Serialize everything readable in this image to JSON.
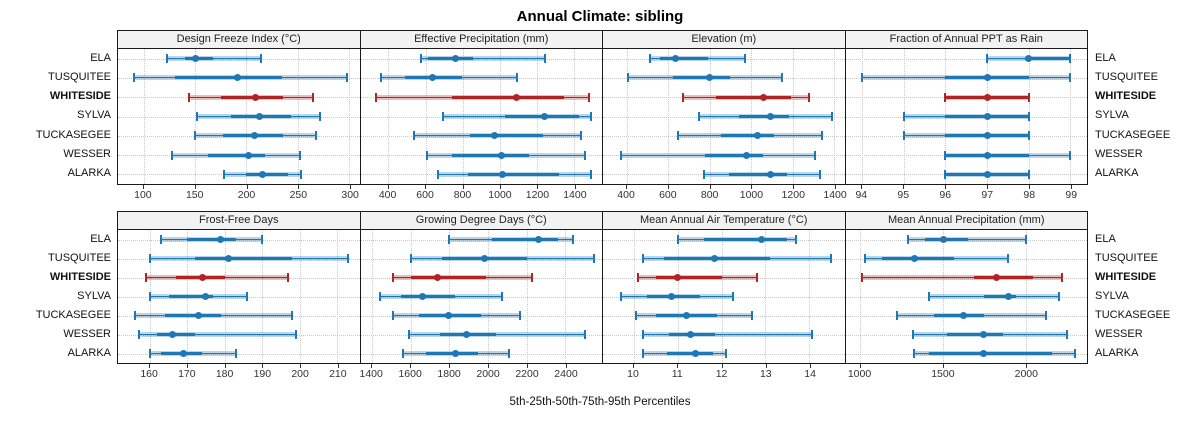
{
  "title": "Annual Climate: sibling",
  "caption": "5th-25th-50th-75th-95th Percentiles",
  "colors": {
    "series": "#1f77b4",
    "series_band": "rgba(31,119,180,0.30)",
    "highlight": "#b02424",
    "highlight_band": "rgba(176,36,36,0.30)",
    "grid": "#c9c9c9",
    "strip_bg": "#f2f2f2",
    "border": "#1a1a1a"
  },
  "chart_data": {
    "type": "dotplot-percentiles",
    "percentile_labels": [
      "5th",
      "25th",
      "50th",
      "75th",
      "95th"
    ],
    "sites": [
      "ELA",
      "TUSQUITEE",
      "WHITESIDE",
      "SYLVA",
      "TUCKASEGEE",
      "WESSER",
      "ALARKA"
    ],
    "highlight_site": "WHITESIDE",
    "legend_note": "values per site are [p5, p25, p50, p75, p95]",
    "rows": [
      {
        "panels": [
          {
            "title": "Design Freeze Index (°C)",
            "xlim": [
              75,
              310
            ],
            "ticks": [
              100,
              150,
              200,
              250,
              300
            ],
            "series": [
              [
                123,
                140,
                150,
                167,
                214
              ],
              [
                91,
                130,
                191,
                235,
                298
              ],
              [
                144,
                175,
                209,
                236,
                265
              ],
              [
                152,
                185,
                213,
                243,
                272
              ],
              [
                150,
                177,
                208,
                236,
                268
              ],
              [
                128,
                163,
                202,
                218,
                252
              ],
              [
                178,
                200,
                216,
                240,
                253
              ]
            ]
          },
          {
            "title": "Effective Precipitation (mm)",
            "xlim": [
              250,
              1550
            ],
            "ticks": [
              400,
              600,
              800,
              1000,
              1200,
              1400
            ],
            "series": [
              [
                575,
                615,
                760,
                855,
                1245
              ],
              [
                360,
                490,
                640,
                795,
                1090
              ],
              [
                335,
                745,
                1090,
                1345,
                1480
              ],
              [
                695,
                1030,
                1240,
                1425,
                1490
              ],
              [
                540,
                840,
                970,
                1235,
                1435
              ],
              [
                610,
                740,
                1010,
                1155,
                1460
              ],
              [
                665,
                830,
                1015,
                1320,
                1490
              ]
            ]
          },
          {
            "title": "Elevation (m)",
            "xlim": [
              285,
              1450
            ],
            "ticks": [
              400,
              600,
              800,
              1000,
              1200,
              1400
            ],
            "series": [
              [
                510,
                560,
                635,
                790,
                970
              ],
              [
                405,
                625,
                800,
                900,
                1150
              ],
              [
                670,
                830,
                1060,
                1190,
                1280
              ],
              [
                750,
                940,
                1095,
                1180,
                1390
              ],
              [
                645,
                855,
                1030,
                1110,
                1340
              ],
              [
                370,
                775,
                975,
                1055,
                1310
              ],
              [
                770,
                895,
                1095,
                1175,
                1330
              ]
            ]
          },
          {
            "title": "Fraction of Annual PPT as Rain",
            "xlim": [
              93.6,
              99.4
            ],
            "ticks": [
              94,
              95,
              96,
              97,
              98,
              99
            ],
            "series": [
              [
                97,
                98,
                98,
                99,
                99
              ],
              [
                94,
                96,
                97,
                98,
                99
              ],
              [
                96,
                96,
                97,
                98,
                98
              ],
              [
                95,
                96,
                97,
                98,
                98
              ],
              [
                95,
                96,
                97,
                98,
                98
              ],
              [
                96,
                96,
                97,
                98,
                99
              ],
              [
                96,
                96,
                97,
                98,
                98
              ]
            ]
          }
        ]
      },
      {
        "panels": [
          {
            "title": "Frost-Free Days",
            "xlim": [
              151.5,
              216
            ],
            "ticks": [
              160,
              170,
              180,
              190,
              200,
              210
            ],
            "series": [
              [
                163,
                170,
                179,
                183,
                190
              ],
              [
                160,
                172,
                181,
                198,
                213
              ],
              [
                159,
                167,
                174,
                180,
                197
              ],
              [
                160,
                165,
                175,
                177,
                186
              ],
              [
                156,
                164,
                173,
                179,
                198
              ],
              [
                157,
                162,
                166,
                172,
                199
              ],
              [
                160,
                163,
                169,
                174,
                183
              ]
            ]
          },
          {
            "title": "Growing Degree Days (°C)",
            "xlim": [
              1340,
              2590
            ],
            "ticks": [
              1400,
              1600,
              1800,
              2000,
              2200,
              2400
            ],
            "series": [
              [
                1800,
                2020,
                2260,
                2360,
                2440
              ],
              [
                1600,
                1760,
                1980,
                2200,
                2550
              ],
              [
                1510,
                1600,
                1740,
                1990,
                2230
              ],
              [
                1440,
                1550,
                1660,
                1830,
                2070
              ],
              [
                1510,
                1645,
                1795,
                1965,
                2165
              ],
              [
                1590,
                1750,
                1890,
                2040,
                2500
              ],
              [
                1560,
                1680,
                1830,
                1950,
                2110
              ]
            ]
          },
          {
            "title": "Mean Annual Air Temperature (°C)",
            "xlim": [
              9.3,
              14.8
            ],
            "ticks": [
              10,
              11,
              12,
              13,
              14
            ],
            "series": [
              [
                11.0,
                11.6,
                12.9,
                13.5,
                13.7
              ],
              [
                10.2,
                10.7,
                11.85,
                13.1,
                14.5
              ],
              [
                10.1,
                10.5,
                11.0,
                12.0,
                12.8
              ],
              [
                9.7,
                10.3,
                10.85,
                11.5,
                12.25
              ],
              [
                10.05,
                10.5,
                11.2,
                11.9,
                12.7
              ],
              [
                10.2,
                10.8,
                11.3,
                11.85,
                14.05
              ],
              [
                10.2,
                10.75,
                11.4,
                11.8,
                12.1
              ]
            ]
          },
          {
            "title": "Mean Annual Precipitation (mm)",
            "xlim": [
              910,
              2370
            ],
            "ticks": [
              1000,
              1500,
              2000
            ],
            "series": [
              [
                1290,
                1390,
                1500,
                1650,
                2000
              ],
              [
                1025,
                1130,
                1330,
                1565,
                1890
              ],
              [
                1010,
                1685,
                1825,
                2045,
                2220
              ],
              [
                1415,
                1750,
                1895,
                1940,
                2200
              ],
              [
                1220,
                1445,
                1625,
                1745,
                2120
              ],
              [
                1320,
                1525,
                1745,
                1865,
                2250
              ],
              [
                1325,
                1415,
                1745,
                2160,
                2295
              ]
            ]
          }
        ]
      }
    ]
  }
}
